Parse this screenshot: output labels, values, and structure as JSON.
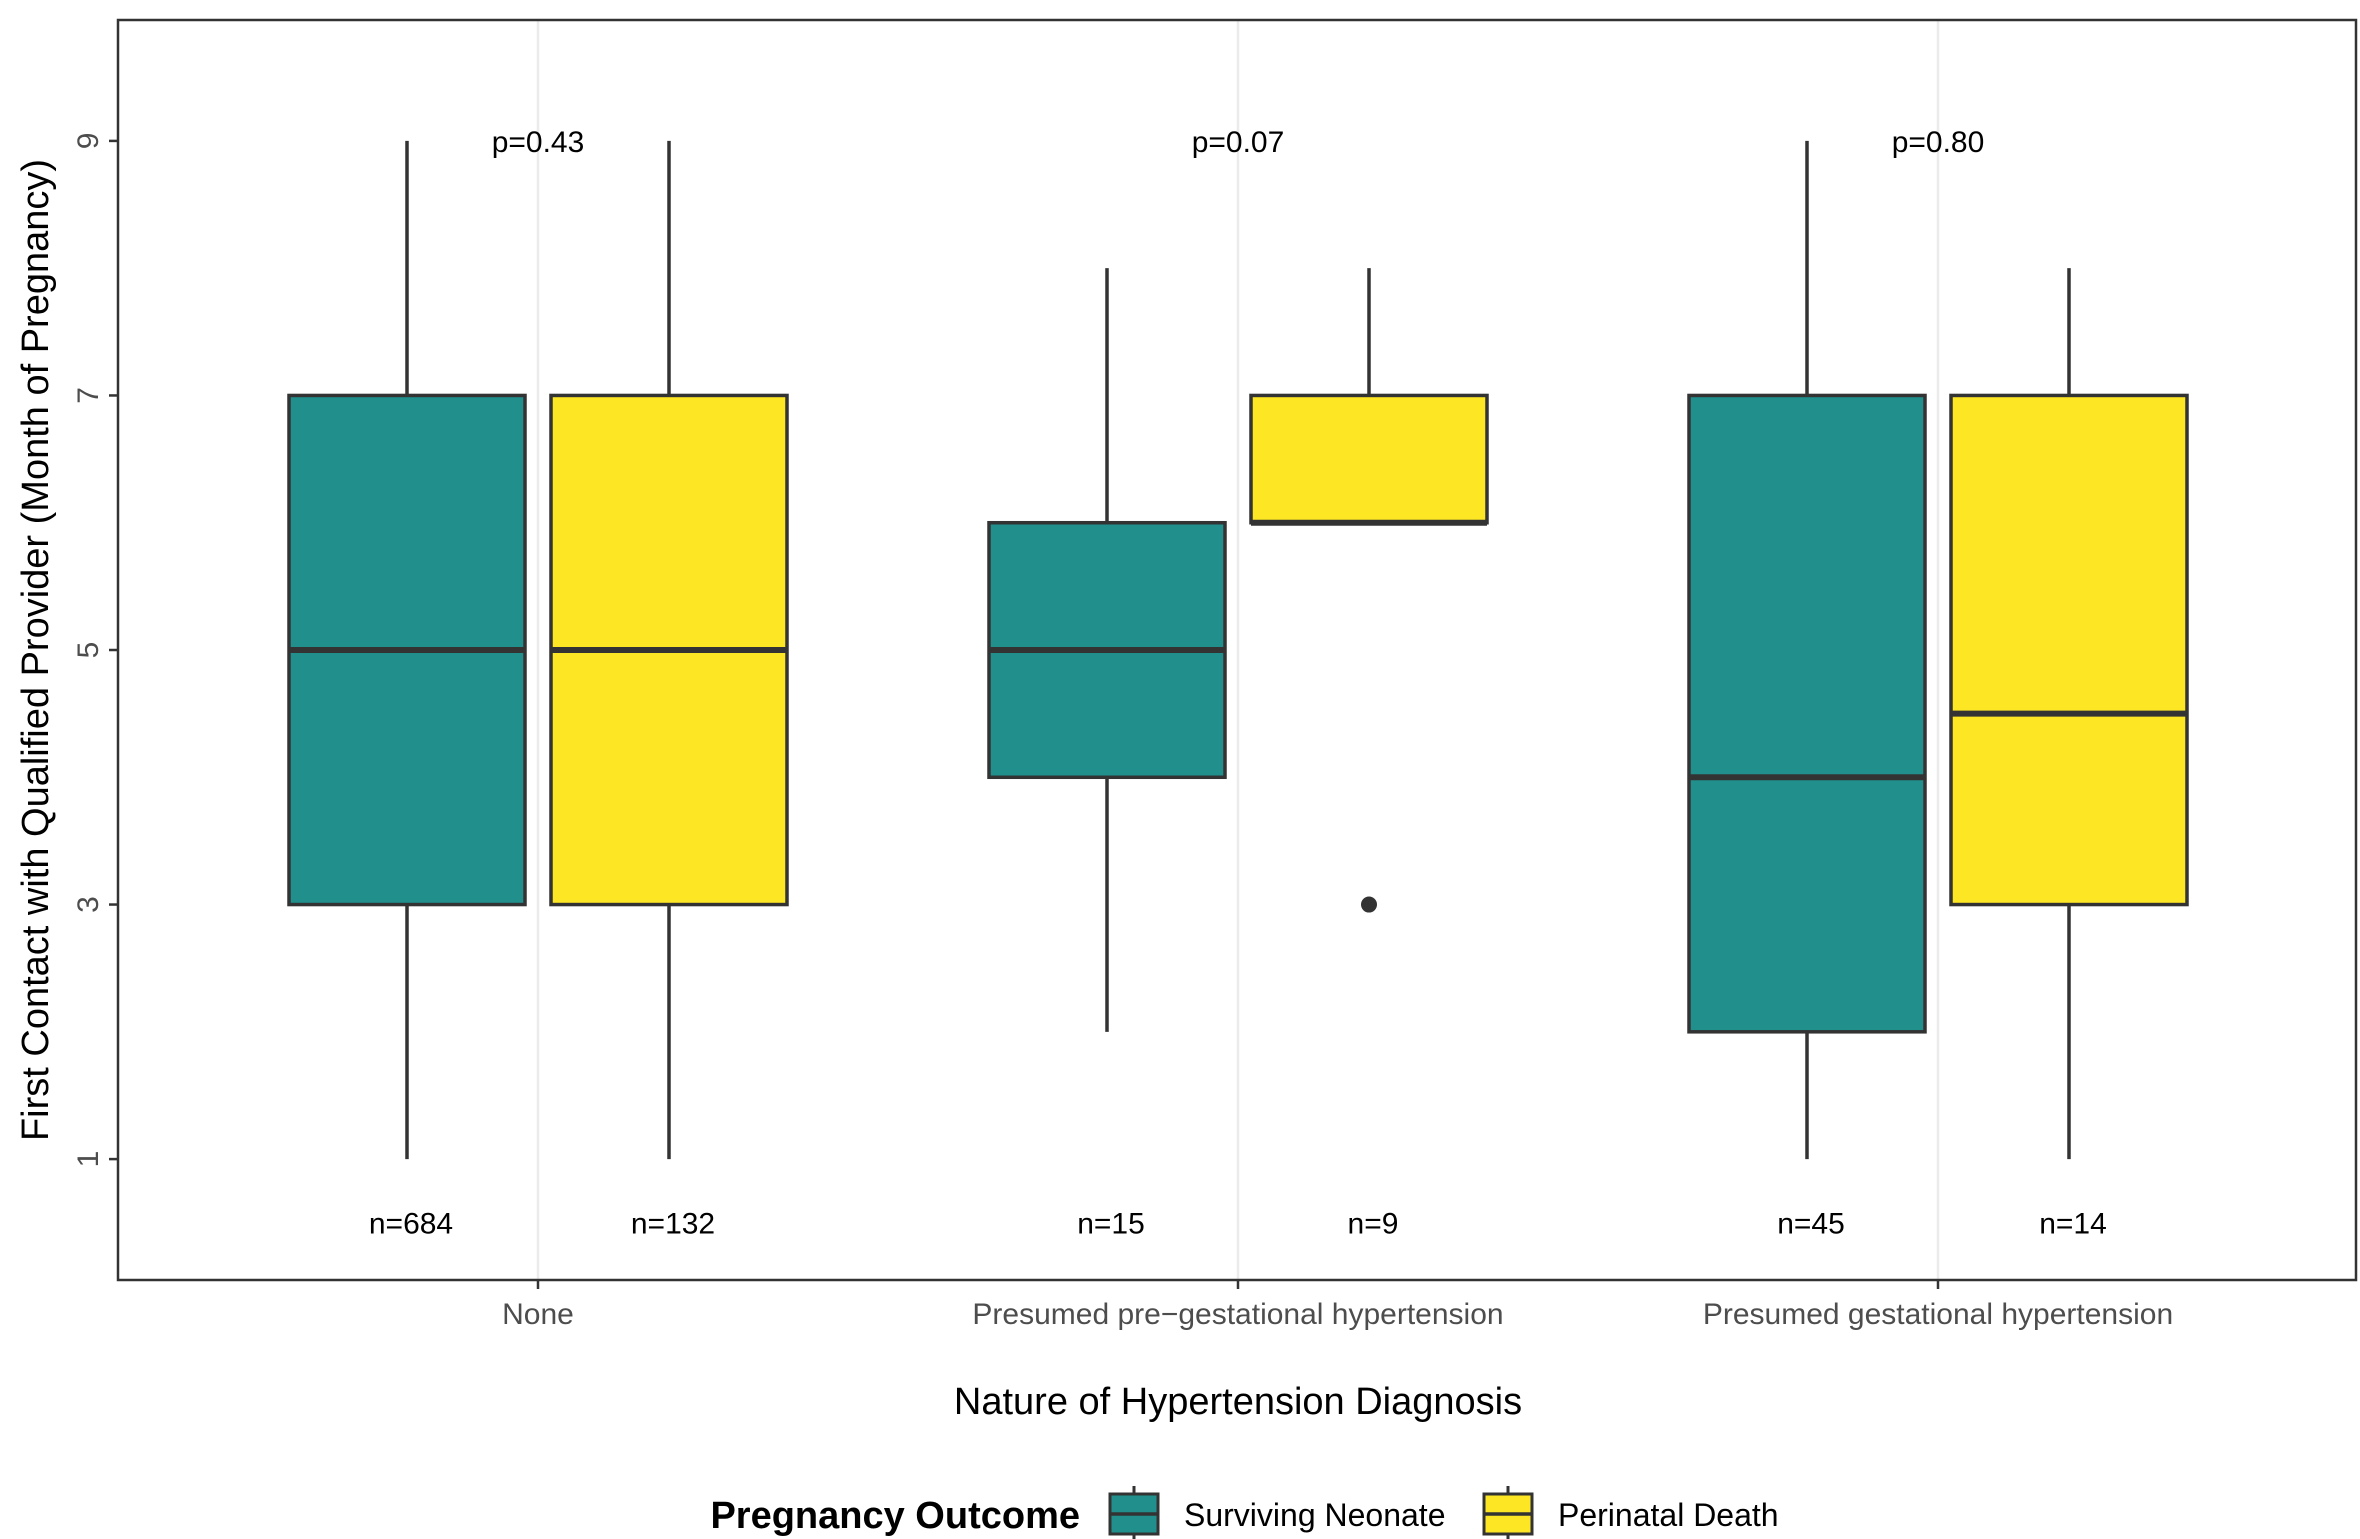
{
  "chart_data": {
    "type": "box",
    "xlabel": "Nature of Hypertension Diagnosis",
    "ylabel": "First Contact with Qualified Provider (Month of Pregnancy)",
    "ylim": [
      0.05,
      9.95
    ],
    "yticks": [
      1,
      3,
      5,
      7,
      9
    ],
    "categories": [
      "None",
      "Presumed pre−gestational hypertension",
      "Presumed gestational hypertension"
    ],
    "legend": {
      "title": "Pregnancy Outcome",
      "position": "bottom"
    },
    "series": [
      {
        "name": "Surviving Neonate",
        "color": "#21908C",
        "boxes": [
          {
            "min": 1,
            "q1": 3,
            "median": 5,
            "q3": 7,
            "max": 9,
            "outliers": [],
            "n_label": "n=684"
          },
          {
            "min": 2,
            "q1": 4,
            "median": 5,
            "q3": 6,
            "max": 8,
            "outliers": [],
            "n_label": "n=15"
          },
          {
            "min": 1,
            "q1": 2,
            "median": 4,
            "q3": 7,
            "max": 9,
            "outliers": [],
            "n_label": "n=45"
          }
        ]
      },
      {
        "name": "Perinatal Death",
        "color": "#FDE725",
        "boxes": [
          {
            "min": 1,
            "q1": 3,
            "median": 5,
            "q3": 7,
            "max": 9,
            "outliers": [],
            "n_label": "n=132"
          },
          {
            "min": 6,
            "q1": 6,
            "median": 6,
            "q3": 7,
            "max": 8,
            "outliers": [
              3
            ],
            "n_label": "n=9"
          },
          {
            "min": 1,
            "q1": 3,
            "median": 4.5,
            "q3": 7,
            "max": 8,
            "outliers": [],
            "n_label": "n=14"
          }
        ]
      }
    ],
    "annotations": [
      {
        "category": 0,
        "value": 9,
        "text": "p=0.43"
      },
      {
        "category": 1,
        "value": 9,
        "text": "p=0.07"
      },
      {
        "category": 2,
        "value": 9,
        "text": "p=0.80"
      }
    ],
    "n_label_value": 0.5,
    "grid": "vertical-major"
  }
}
